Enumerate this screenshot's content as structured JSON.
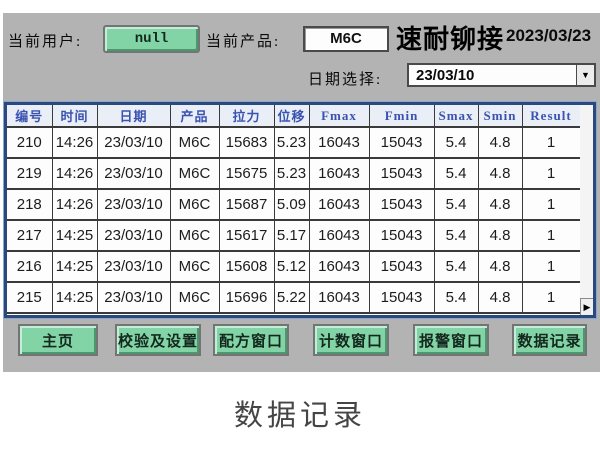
{
  "top_bar": {
    "current_user_label": "当前用户:",
    "current_user_value": "null",
    "current_product_label": "当前产品:",
    "current_product_value": "M6C",
    "brand": "速耐铆接",
    "system_date": "2023/03/23",
    "date_select_label": "日期选择:",
    "date_select_value": "23/03/10"
  },
  "icons": {
    "dropdown_arrow": "▼",
    "scroll_right": "▶"
  },
  "table": {
    "columns": [
      "编号",
      "时间",
      "日期",
      "产品",
      "拉力",
      "位移",
      "Fmax",
      "Fmin",
      "Smax",
      "Smin",
      "Result"
    ],
    "rows": [
      [
        "210",
        "14:26",
        "23/03/10",
        "M6C",
        "15683",
        "5.23",
        "16043",
        "15043",
        "5.4",
        "4.8",
        "1"
      ],
      [
        "219",
        "14:26",
        "23/03/10",
        "M6C",
        "15675",
        "5.23",
        "16043",
        "15043",
        "5.4",
        "4.8",
        "1"
      ],
      [
        "218",
        "14:26",
        "23/03/10",
        "M6C",
        "15687",
        "5.09",
        "16043",
        "15043",
        "5.4",
        "4.8",
        "1"
      ],
      [
        "217",
        "14:25",
        "23/03/10",
        "M6C",
        "15617",
        "5.17",
        "16043",
        "15043",
        "5.4",
        "4.8",
        "1"
      ],
      [
        "216",
        "14:25",
        "23/03/10",
        "M6C",
        "15608",
        "5.12",
        "16043",
        "15043",
        "5.4",
        "4.8",
        "1"
      ],
      [
        "215",
        "14:25",
        "23/03/10",
        "M6C",
        "15696",
        "5.22",
        "16043",
        "15043",
        "5.4",
        "4.8",
        "1"
      ]
    ]
  },
  "nav_buttons": [
    {
      "id": "home",
      "label": "主页"
    },
    {
      "id": "calibration-settings",
      "label": "校验及设置"
    },
    {
      "id": "recipe-window",
      "label": "配方窗口"
    },
    {
      "id": "count-window",
      "label": "计数窗口"
    },
    {
      "id": "alarm-window",
      "label": "报警窗口"
    },
    {
      "id": "data-record",
      "label": "数据记录"
    }
  ],
  "caption": "数据记录",
  "colors": {
    "panel_bg": "#b3b3b3",
    "button_green": "#82d4a6",
    "table_header_text": "#3b53b0",
    "table_header_bg": "#e9eef7",
    "table_border": "#29497f"
  }
}
